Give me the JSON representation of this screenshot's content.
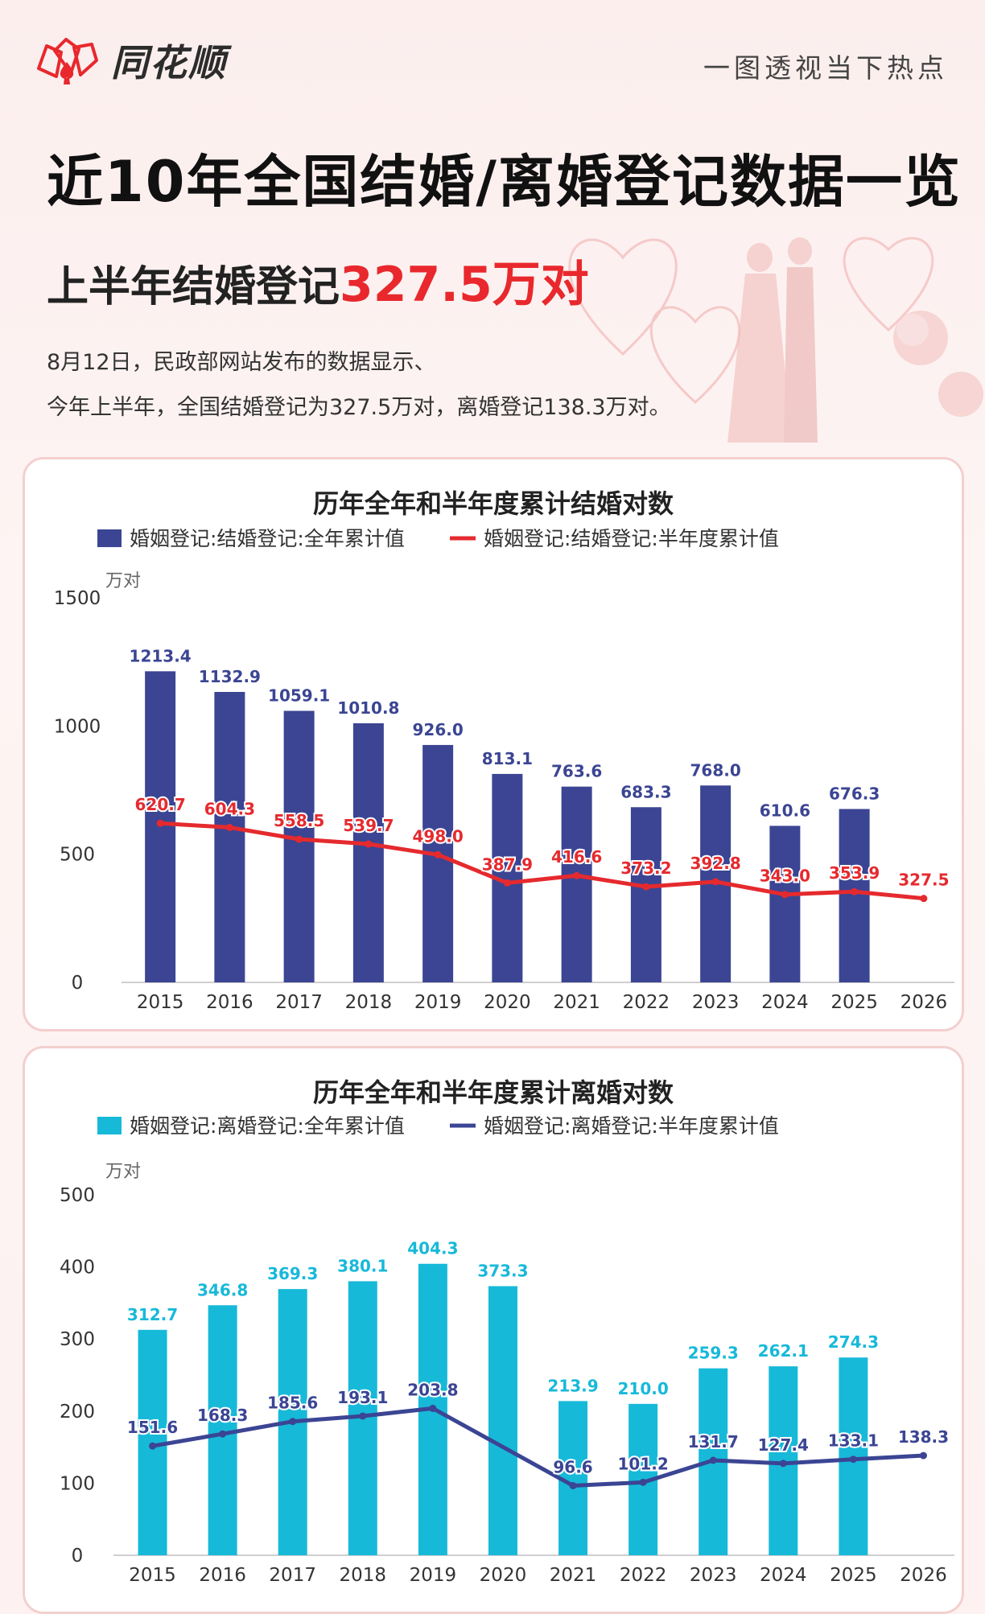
{
  "header": {
    "brand": "同花顺",
    "slogan": "一图透视当下热点"
  },
  "title": "近10年全国结婚/离婚登记数据一览",
  "subtitle": {
    "prefix": "上半年结婚登记",
    "highlight": "327.5万对"
  },
  "description": [
    "8月12日，民政部网站发布的数据显示、",
    "今年上半年，全国结婚登记为327.5万对，离婚登记138.3万对。"
  ],
  "colors": {
    "brand_red": "#e8282d",
    "marriage_bar": "#3b4593",
    "marriage_line": "#e52a2e",
    "divorce_bar": "#17b9d9",
    "divorce_line": "#3b4593"
  },
  "chart_data": [
    {
      "type": "bar",
      "title": "历年全年和半年度累计结婚对数",
      "unit": "万对",
      "categories": [
        "2015",
        "2016",
        "2017",
        "2018",
        "2019",
        "2020",
        "2021",
        "2022",
        "2023",
        "2024",
        "2025",
        "2026"
      ],
      "ylim": [
        0,
        1500
      ],
      "yticks": [
        0,
        500,
        1000,
        1500
      ],
      "legend_position": "top",
      "series": [
        {
          "name": "婚姻登记:结婚登记:全年累计值",
          "type": "bar",
          "color": "#3b4593",
          "values": [
            1213.4,
            1132.9,
            1059.1,
            1010.8,
            926.0,
            813.1,
            763.6,
            683.3,
            768.0,
            610.6,
            676.3,
            null
          ]
        },
        {
          "name": "婚姻登记:结婚登记:半年度累计值",
          "type": "line",
          "color": "#e52a2e",
          "values": [
            620.7,
            604.3,
            558.5,
            539.7,
            498.0,
            387.9,
            416.6,
            373.2,
            392.8,
            343.0,
            353.9,
            327.5
          ]
        }
      ]
    },
    {
      "type": "bar",
      "title": "历年全年和半年度累计离婚对数",
      "unit": "万对",
      "categories": [
        "2015",
        "2016",
        "2017",
        "2018",
        "2019",
        "2020",
        "2021",
        "2022",
        "2023",
        "2024",
        "2025",
        "2026"
      ],
      "ylim": [
        0,
        500
      ],
      "yticks": [
        0,
        100,
        200,
        300,
        400,
        500
      ],
      "legend_position": "top",
      "series": [
        {
          "name": "婚姻登记:离婚登记:全年累计值",
          "type": "bar",
          "color": "#17b9d9",
          "values": [
            312.7,
            346.8,
            369.3,
            380.1,
            404.3,
            373.3,
            213.9,
            210.0,
            259.3,
            262.1,
            274.3,
            null
          ]
        },
        {
          "name": "婚姻登记:离婚登记:半年度累计值",
          "type": "line",
          "color": "#3b4593",
          "values": [
            151.6,
            168.3,
            185.6,
            193.1,
            203.8,
            null,
            96.6,
            101.2,
            131.7,
            127.4,
            133.1,
            138.3
          ]
        }
      ]
    }
  ]
}
